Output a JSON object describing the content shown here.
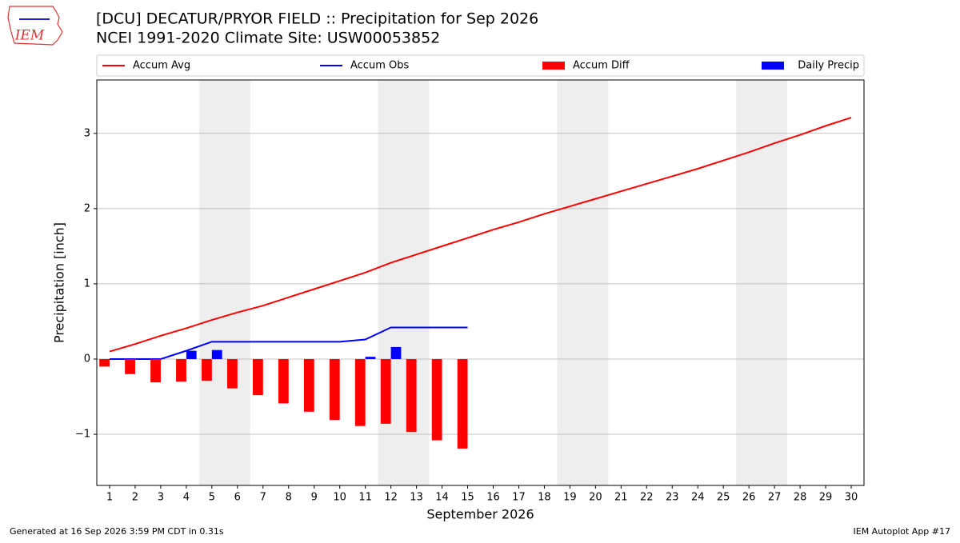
{
  "logo_text": "IEM",
  "footer_left": "Generated at 16 Sep 2026 3:59 PM CDT in 0.31s",
  "footer_right": "IEM Autoplot App #17",
  "chart_data": {
    "type": "combo",
    "title": "[DCU] DECATUR/PRYOR FIELD :: Precipitation for Sep 2026",
    "subtitle": "NCEI 1991-2020 Climate Site: USW00053852",
    "xlabel": "September 2026",
    "ylabel": "Precipitation [inch]",
    "x": [
      1,
      2,
      3,
      4,
      5,
      6,
      7,
      8,
      9,
      10,
      11,
      12,
      13,
      14,
      15,
      16,
      17,
      18,
      19,
      20,
      21,
      22,
      23,
      24,
      25,
      26,
      27,
      28,
      29,
      30
    ],
    "xlim": [
      0.5,
      30.5
    ],
    "xticks": [
      1,
      2,
      3,
      4,
      5,
      6,
      7,
      8,
      9,
      10,
      11,
      12,
      13,
      14,
      15,
      16,
      17,
      18,
      19,
      20,
      21,
      22,
      23,
      24,
      25,
      26,
      27,
      28,
      29,
      30
    ],
    "ylim": [
      -1.68,
      3.71
    ],
    "yticks": [
      {
        "value": -1,
        "label": "−1"
      },
      0,
      1,
      2,
      3
    ],
    "grid": true,
    "shaded_ranges": [
      [
        4.5,
        6.5
      ],
      [
        11.5,
        13.5
      ],
      [
        18.5,
        20.5
      ],
      [
        25.5,
        27.5
      ]
    ],
    "series": [
      {
        "name": "Accum Avg",
        "kind": "line",
        "color": "#ff0000",
        "values": [
          0.1,
          0.2,
          0.31,
          0.41,
          0.52,
          0.62,
          0.71,
          0.82,
          0.93,
          1.04,
          1.15,
          1.28,
          1.39,
          1.5,
          1.61,
          1.72,
          1.82,
          1.93,
          2.03,
          2.13,
          2.23,
          2.33,
          2.43,
          2.53,
          2.64,
          2.75,
          2.87,
          2.98,
          3.1,
          3.21
        ]
      },
      {
        "name": "Accum Obs",
        "kind": "line",
        "color": "#0000ff",
        "values": [
          0,
          0,
          0,
          0.11,
          0.23,
          0.23,
          0.23,
          0.23,
          0.23,
          0.23,
          0.26,
          0.42,
          0.42,
          0.42,
          0.42,
          null,
          null,
          null,
          null,
          null,
          null,
          null,
          null,
          null,
          null,
          null,
          null,
          null,
          null,
          null
        ]
      },
      {
        "name": "Accum Diff",
        "kind": "bar",
        "offset": -0.2,
        "color": "#ff0000",
        "values": [
          -0.1,
          -0.2,
          -0.31,
          -0.3,
          -0.29,
          -0.39,
          -0.48,
          -0.59,
          -0.7,
          -0.81,
          -0.89,
          -0.86,
          -0.97,
          -1.08,
          -1.19,
          null,
          null,
          null,
          null,
          null,
          null,
          null,
          null,
          null,
          null,
          null,
          null,
          null,
          null,
          null
        ]
      },
      {
        "name": "Daily Precip",
        "kind": "bar",
        "offset": 0.2,
        "color": "#0000ff",
        "values": [
          0,
          0,
          0,
          0.11,
          0.12,
          0,
          0,
          0,
          0,
          0,
          0.03,
          0.16,
          0,
          0,
          0,
          null,
          null,
          null,
          null,
          null,
          null,
          null,
          null,
          null,
          null,
          null,
          null,
          null,
          null,
          null
        ]
      }
    ]
  }
}
